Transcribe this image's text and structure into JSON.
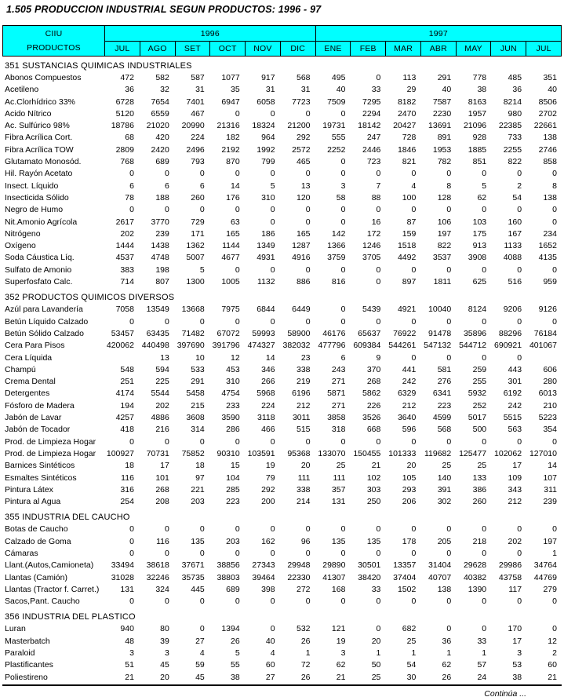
{
  "title": "1.505  PRODUCCION  INDUSTRIAL  SEGUN PRODUCTOS:  1996 - 97",
  "colors": {
    "header_bg": "#00FFFF",
    "border": "#000000"
  },
  "header": {
    "ciiu": "CIIU",
    "productos": "PRODUCTOS",
    "years": [
      {
        "label": "1996",
        "months": [
          "JUL",
          "AGO",
          "SET",
          "OCT",
          "NOV",
          "DIC"
        ]
      },
      {
        "label": "1997",
        "months": [
          "ENE",
          "FEB",
          "MAR",
          "ABR",
          "MAY",
          "JUN",
          "JUL"
        ]
      }
    ]
  },
  "sections": [
    {
      "heading": "351 SUSTANCIAS QUIMICAS INDUSTRIALES",
      "rows": [
        {
          "label": "Abonos Compuestos",
          "values": [
            472,
            582,
            587,
            1077,
            917,
            568,
            495,
            0,
            113,
            291,
            778,
            485,
            351
          ]
        },
        {
          "label": "Acetileno",
          "values": [
            36,
            32,
            31,
            35,
            31,
            31,
            40,
            33,
            29,
            40,
            38,
            36,
            40
          ]
        },
        {
          "label": "Ac.Clorhídrico 33%",
          "values": [
            6728,
            7654,
            7401,
            6947,
            6058,
            7723,
            7509,
            7295,
            8182,
            7587,
            8163,
            8214,
            8506
          ]
        },
        {
          "label": "Acido Nítrico",
          "values": [
            5120,
            6559,
            467,
            0,
            0,
            0,
            0,
            2294,
            2470,
            2230,
            1957,
            980,
            2702
          ]
        },
        {
          "label": "Ac. Sulfúrico 98%",
          "values": [
            18786,
            21020,
            20990,
            21316,
            18324,
            21200,
            19731,
            18142,
            20427,
            13691,
            21096,
            22385,
            22661
          ]
        },
        {
          "label": "Fibra Acrílica Cort.",
          "values": [
            68,
            420,
            224,
            182,
            964,
            292,
            555,
            247,
            728,
            891,
            928,
            733,
            138
          ]
        },
        {
          "label": "Fibra Acrílica TOW",
          "values": [
            2809,
            2420,
            2496,
            2192,
            1992,
            2572,
            2252,
            2446,
            1846,
            1953,
            1885,
            2255,
            2746
          ]
        },
        {
          "label": "Glutamato Monosód.",
          "values": [
            768,
            689,
            793,
            870,
            799,
            465,
            0,
            723,
            821,
            782,
            851,
            822,
            858
          ]
        },
        {
          "label": "Hil. Rayón Acetato",
          "values": [
            0,
            0,
            0,
            0,
            0,
            0,
            0,
            0,
            0,
            0,
            0,
            0,
            0
          ]
        },
        {
          "label": "Insect. Líquido",
          "values": [
            6,
            6,
            6,
            14,
            5,
            13,
            3,
            7,
            4,
            8,
            5,
            2,
            8
          ]
        },
        {
          "label": "Insecticida Sólido",
          "values": [
            78,
            188,
            260,
            176,
            310,
            120,
            58,
            88,
            100,
            128,
            62,
            54,
            138
          ]
        },
        {
          "label": "Negro de Humo",
          "values": [
            0,
            0,
            0,
            0,
            0,
            0,
            0,
            0,
            0,
            0,
            0,
            0,
            0
          ]
        },
        {
          "label": "Nit.Amonio Agrícola",
          "values": [
            2617,
            3770,
            729,
            63,
            0,
            0,
            0,
            16,
            87,
            106,
            103,
            160,
            0
          ]
        },
        {
          "label": "Nitrógeno",
          "values": [
            202,
            239,
            171,
            165,
            186,
            165,
            142,
            172,
            159,
            197,
            175,
            167,
            234
          ]
        },
        {
          "label": "Oxígeno",
          "values": [
            1444,
            1438,
            1362,
            1144,
            1349,
            1287,
            1366,
            1246,
            1518,
            822,
            913,
            1133,
            1652
          ]
        },
        {
          "label": "Soda Cáustica Líq.",
          "values": [
            4537,
            4748,
            5007,
            4677,
            4931,
            4916,
            3759,
            3705,
            4492,
            3537,
            3908,
            4088,
            4135
          ]
        },
        {
          "label": "Sulfato de Amonio",
          "values": [
            383,
            198,
            5,
            0,
            0,
            0,
            0,
            0,
            0,
            0,
            0,
            0,
            0
          ]
        },
        {
          "label": "Superfosfato Calc.",
          "values": [
            714,
            807,
            1300,
            1005,
            1132,
            886,
            816,
            0,
            897,
            1811,
            625,
            516,
            959
          ]
        }
      ]
    },
    {
      "heading": "352 PRODUCTOS QUIMICOS DIVERSOS",
      "rows": [
        {
          "label": "Azúl para Lavandería",
          "values": [
            7058,
            13549,
            13668,
            7975,
            6844,
            6449,
            0,
            5439,
            4921,
            10040,
            8124,
            9206,
            9126
          ]
        },
        {
          "label": "Betún Líquido Calzado",
          "values": [
            0,
            0,
            0,
            0,
            0,
            0,
            0,
            0,
            0,
            0,
            0,
            0,
            0
          ]
        },
        {
          "label": "Betún Sólido Calzado",
          "values": [
            53457,
            63435,
            71482,
            67072,
            59993,
            58900,
            46176,
            65637,
            76922,
            91478,
            35896,
            88296,
            76184
          ]
        },
        {
          "label": "Cera Para Pisos",
          "values": [
            420062,
            440498,
            397690,
            391796,
            474327,
            382032,
            477796,
            609384,
            544261,
            547132,
            544712,
            690921,
            401067
          ]
        },
        {
          "label": "Cera Líquida",
          "values": [
            "",
            13,
            10,
            12,
            14,
            23,
            6,
            9,
            0,
            0,
            0,
            0,
            ""
          ]
        },
        {
          "label": "Champú",
          "values": [
            548,
            594,
            533,
            453,
            346,
            338,
            243,
            370,
            441,
            581,
            259,
            443,
            606
          ]
        },
        {
          "label": "Crema Dental",
          "values": [
            251,
            225,
            291,
            310,
            266,
            219,
            271,
            268,
            242,
            276,
            255,
            301,
            280
          ]
        },
        {
          "label": "Detergentes",
          "values": [
            4174,
            5544,
            5458,
            4754,
            5968,
            6196,
            5871,
            5862,
            6329,
            6341,
            5932,
            6192,
            6013
          ]
        },
        {
          "label": "Fósforo de Madera",
          "values": [
            194,
            202,
            215,
            233,
            224,
            212,
            271,
            226,
            212,
            223,
            252,
            242,
            210
          ]
        },
        {
          "label": "Jabón de Lavar",
          "values": [
            4257,
            4886,
            3608,
            3590,
            3118,
            3011,
            3858,
            3526,
            3640,
            4599,
            5017,
            5515,
            5223
          ]
        },
        {
          "label": "Jabón de Tocador",
          "values": [
            418,
            216,
            314,
            286,
            466,
            515,
            318,
            668,
            596,
            568,
            500,
            563,
            354
          ]
        },
        {
          "label": "Prod. de Limpieza Hogar",
          "values": [
            0,
            0,
            0,
            0,
            0,
            0,
            0,
            0,
            0,
            0,
            0,
            0,
            0
          ]
        },
        {
          "label": "Prod. de Limpieza Hogar",
          "values": [
            100927,
            70731,
            75852,
            90310,
            103591,
            95368,
            133070,
            150455,
            101333,
            119682,
            125477,
            102062,
            127010
          ]
        },
        {
          "label": "Barnices Sintéticos",
          "values": [
            18,
            17,
            18,
            15,
            19,
            20,
            25,
            21,
            20,
            25,
            25,
            17,
            14
          ]
        },
        {
          "label": "Esmaltes Sintéticos",
          "values": [
            116,
            101,
            97,
            104,
            79,
            111,
            111,
            102,
            105,
            140,
            133,
            109,
            107
          ]
        },
        {
          "label": "Pintura Látex",
          "values": [
            316,
            268,
            221,
            285,
            292,
            338,
            357,
            303,
            293,
            391,
            386,
            343,
            311
          ]
        },
        {
          "label": "Pintura al Agua",
          "values": [
            254,
            208,
            203,
            223,
            200,
            214,
            131,
            250,
            206,
            302,
            260,
            212,
            239
          ]
        }
      ]
    },
    {
      "heading": "355 INDUSTRIA DEL CAUCHO",
      "rows": [
        {
          "label": "Botas de Caucho",
          "values": [
            0,
            0,
            0,
            0,
            0,
            0,
            0,
            0,
            0,
            0,
            0,
            0,
            0
          ]
        },
        {
          "label": "Calzado de Goma",
          "values": [
            0,
            116,
            135,
            203,
            162,
            96,
            135,
            135,
            178,
            205,
            218,
            202,
            197
          ]
        },
        {
          "label": "Cámaras",
          "values": [
            0,
            0,
            0,
            0,
            0,
            0,
            0,
            0,
            0,
            0,
            0,
            0,
            1
          ]
        },
        {
          "label": "Llant.(Autos,Camioneta)",
          "values": [
            33494,
            38618,
            37671,
            38856,
            27343,
            29948,
            29890,
            30501,
            13357,
            31404,
            29628,
            29986,
            34764
          ]
        },
        {
          "label": "Llantas (Camión)",
          "values": [
            31028,
            32246,
            35735,
            38803,
            39464,
            22330,
            41307,
            38420,
            37404,
            40707,
            40382,
            43758,
            44769
          ]
        },
        {
          "label": "Llantas (Tractor f. Carret.)",
          "values": [
            131,
            324,
            445,
            689,
            398,
            272,
            168,
            33,
            1502,
            138,
            1390,
            117,
            279
          ]
        },
        {
          "label": "Sacos,Pant. Caucho",
          "values": [
            0,
            0,
            0,
            0,
            0,
            0,
            0,
            0,
            0,
            0,
            0,
            0,
            0
          ]
        }
      ]
    },
    {
      "heading": "356 INDUSTRIA DEL PLASTICO",
      "rows": [
        {
          "label": "Luran",
          "values": [
            940,
            80,
            0,
            1394,
            0,
            532,
            121,
            0,
            682,
            0,
            0,
            170,
            0
          ]
        },
        {
          "label": "Masterbatch",
          "values": [
            48,
            39,
            27,
            26,
            40,
            26,
            19,
            20,
            25,
            36,
            33,
            17,
            12
          ]
        },
        {
          "label": "Paraloid",
          "values": [
            3,
            3,
            4,
            5,
            4,
            1,
            3,
            1,
            1,
            1,
            1,
            3,
            2
          ]
        },
        {
          "label": "Plastificantes",
          "values": [
            51,
            45,
            59,
            55,
            60,
            72,
            62,
            50,
            54,
            62,
            57,
            53,
            60
          ]
        },
        {
          "label": "Poliestireno",
          "values": [
            21,
            20,
            45,
            38,
            27,
            26,
            21,
            25,
            30,
            26,
            24,
            38,
            21
          ]
        }
      ]
    }
  ],
  "footer": {
    "note": "Continúa ..."
  }
}
